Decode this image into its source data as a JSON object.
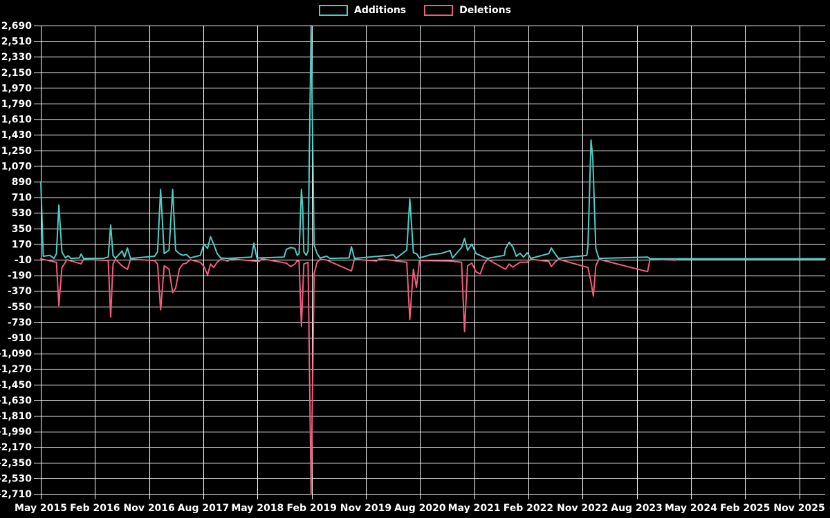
{
  "chart_data": {
    "type": "line",
    "title": "",
    "legend": [
      {
        "name": "Additions",
        "color": "#4ECDC4"
      },
      {
        "name": "Deletions",
        "color": "#F25C7F"
      }
    ],
    "background_color": "#000000",
    "grid_color": "#FFFFFF",
    "text_color": "#FFFFFF",
    "grid": true,
    "legend_position": "top-center",
    "x_ticks": [
      "May 2015",
      "Feb 2016",
      "Nov 2016",
      "Aug 2017",
      "May 2018",
      "Feb 2019",
      "Nov 2019",
      "Aug 2020",
      "May 2021",
      "Feb 2022",
      "Nov 2022",
      "Aug 2023",
      "May 2024",
      "Feb 2025",
      "Nov 2025"
    ],
    "x_tick_interval_months": 9,
    "xlim_months": [
      0,
      130.3
    ],
    "y_ticks": [
      2690,
      2510,
      2330,
      2150,
      1970,
      1790,
      1610,
      1430,
      1250,
      1070,
      890,
      710,
      530,
      350,
      170,
      -10,
      -190,
      -370,
      -550,
      -730,
      -910,
      -1090,
      -1270,
      -1450,
      -1630,
      -1810,
      -1990,
      -2170,
      -2350,
      -2530,
      -2710
    ],
    "ylim": [
      -2710,
      2690
    ],
    "series": [
      {
        "name": "Additions",
        "color": "#4ECDC4",
        "points": [
          [
            0,
            890
          ],
          [
            0.4,
            30
          ],
          [
            1.5,
            40
          ],
          [
            2.2,
            5
          ],
          [
            2.6,
            60
          ],
          [
            3.0,
            620
          ],
          [
            3.5,
            80
          ],
          [
            4.1,
            10
          ],
          [
            4.5,
            35
          ],
          [
            5.0,
            5
          ],
          [
            6.4,
            10
          ],
          [
            6.7,
            55
          ],
          [
            7.1,
            5
          ],
          [
            10.5,
            5
          ],
          [
            10.7,
            12
          ],
          [
            11.2,
            20
          ],
          [
            11.6,
            390
          ],
          [
            12.0,
            40
          ],
          [
            12.4,
            5
          ],
          [
            13.5,
            90
          ],
          [
            13.9,
            20
          ],
          [
            14.4,
            125
          ],
          [
            14.9,
            5
          ],
          [
            18.9,
            30
          ],
          [
            19.4,
            80
          ],
          [
            19.9,
            800
          ],
          [
            20.5,
            60
          ],
          [
            21.3,
            100
          ],
          [
            21.9,
            800
          ],
          [
            22.4,
            100
          ],
          [
            23.0,
            60
          ],
          [
            23.6,
            40
          ],
          [
            24.2,
            50
          ],
          [
            24.8,
            10
          ],
          [
            26.5,
            40
          ],
          [
            27.1,
            170
          ],
          [
            27.7,
            120
          ],
          [
            28.2,
            255
          ],
          [
            28.7,
            170
          ],
          [
            29.3,
            60
          ],
          [
            29.9,
            10
          ],
          [
            31.1,
            5
          ],
          [
            35.0,
            20
          ],
          [
            35.4,
            180
          ],
          [
            35.9,
            10
          ],
          [
            36.3,
            10
          ],
          [
            40.4,
            20
          ],
          [
            40.8,
            110
          ],
          [
            41.5,
            130
          ],
          [
            42.2,
            120
          ],
          [
            42.6,
            40
          ],
          [
            42.9,
            60
          ],
          [
            43.3,
            800
          ],
          [
            43.5,
            600
          ],
          [
            43.7,
            80
          ],
          [
            44.1,
            40
          ],
          [
            44.4,
            90
          ],
          [
            44.9,
            2690
          ],
          [
            45.4,
            160
          ],
          [
            45.9,
            60
          ],
          [
            46.4,
            10
          ],
          [
            47.5,
            30
          ],
          [
            48.0,
            5
          ],
          [
            51.2,
            10
          ],
          [
            51.6,
            140
          ],
          [
            52.1,
            5
          ],
          [
            58.6,
            45
          ],
          [
            59.0,
            5
          ],
          [
            60.8,
            100
          ],
          [
            61.3,
            690
          ],
          [
            61.9,
            70
          ],
          [
            62.4,
            60
          ],
          [
            62.9,
            10
          ],
          [
            64.9,
            50
          ],
          [
            66.4,
            60
          ],
          [
            68.0,
            95
          ],
          [
            68.4,
            10
          ],
          [
            69.9,
            130
          ],
          [
            70.4,
            235
          ],
          [
            70.9,
            100
          ],
          [
            71.6,
            170
          ],
          [
            72.3,
            60
          ],
          [
            73.0,
            40
          ],
          [
            73.6,
            20
          ],
          [
            74.2,
            5
          ],
          [
            77.0,
            40
          ],
          [
            77.2,
            120
          ],
          [
            77.8,
            190
          ],
          [
            78.4,
            140
          ],
          [
            79.0,
            30
          ],
          [
            79.6,
            65
          ],
          [
            80.2,
            20
          ],
          [
            80.8,
            70
          ],
          [
            81.4,
            5
          ],
          [
            84.4,
            60
          ],
          [
            84.8,
            125
          ],
          [
            85.4,
            60
          ],
          [
            86.0,
            5
          ],
          [
            90.7,
            40
          ],
          [
            90.9,
            150
          ],
          [
            91.4,
            1370
          ],
          [
            91.7,
            1150
          ],
          [
            92.2,
            120
          ],
          [
            92.7,
            5
          ],
          [
            100.8,
            20
          ],
          [
            101.2,
            0
          ],
          [
            130.3,
            0
          ]
        ]
      },
      {
        "name": "Deletions",
        "color": "#F25C7F",
        "points": [
          [
            0,
            0
          ],
          [
            2.6,
            -40
          ],
          [
            3.0,
            -540
          ],
          [
            3.5,
            -100
          ],
          [
            3.9,
            -60
          ],
          [
            4.3,
            -10
          ],
          [
            6.7,
            -58
          ],
          [
            7.1,
            -5
          ],
          [
            11.2,
            -20
          ],
          [
            11.6,
            -670
          ],
          [
            12.0,
            -60
          ],
          [
            12.4,
            -5
          ],
          [
            13.5,
            -82
          ],
          [
            14.4,
            -122
          ],
          [
            14.9,
            -5
          ],
          [
            18.9,
            -20
          ],
          [
            19.4,
            -60
          ],
          [
            19.9,
            -590
          ],
          [
            20.5,
            -80
          ],
          [
            21.3,
            -120
          ],
          [
            21.9,
            -390
          ],
          [
            22.4,
            -340
          ],
          [
            23.0,
            -120
          ],
          [
            23.6,
            -60
          ],
          [
            24.2,
            -50
          ],
          [
            24.8,
            -10
          ],
          [
            26.5,
            -40
          ],
          [
            27.1,
            -90
          ],
          [
            27.7,
            -185
          ],
          [
            28.2,
            -60
          ],
          [
            28.7,
            -100
          ],
          [
            29.3,
            -40
          ],
          [
            29.9,
            -5
          ],
          [
            31.1,
            -25
          ],
          [
            31.5,
            0
          ],
          [
            35.4,
            -25
          ],
          [
            36.3,
            -30
          ],
          [
            36.7,
            0
          ],
          [
            40.8,
            -50
          ],
          [
            41.5,
            -90
          ],
          [
            42.2,
            -60
          ],
          [
            42.6,
            -20
          ],
          [
            42.9,
            -30
          ],
          [
            43.3,
            -780
          ],
          [
            43.7,
            -60
          ],
          [
            44.4,
            -40
          ],
          [
            44.9,
            -2710
          ],
          [
            45.4,
            -170
          ],
          [
            45.9,
            -40
          ],
          [
            46.4,
            -5
          ],
          [
            47.5,
            -15
          ],
          [
            51.6,
            -140
          ],
          [
            52.1,
            -5
          ],
          [
            55.8,
            -25
          ],
          [
            56.2,
            0
          ],
          [
            58.6,
            -20
          ],
          [
            60.8,
            -40
          ],
          [
            61.3,
            -700
          ],
          [
            61.9,
            -120
          ],
          [
            62.4,
            -330
          ],
          [
            62.9,
            -20
          ],
          [
            68.0,
            -25
          ],
          [
            69.9,
            -40
          ],
          [
            70.4,
            -840
          ],
          [
            70.9,
            -80
          ],
          [
            71.6,
            -50
          ],
          [
            72.3,
            -150
          ],
          [
            73.0,
            -175
          ],
          [
            73.6,
            -60
          ],
          [
            74.2,
            -5
          ],
          [
            77.2,
            -120
          ],
          [
            77.8,
            -60
          ],
          [
            78.4,
            -95
          ],
          [
            79.6,
            -40
          ],
          [
            80.8,
            -40
          ],
          [
            81.4,
            -5
          ],
          [
            84.4,
            -30
          ],
          [
            84.8,
            -90
          ],
          [
            85.4,
            -40
          ],
          [
            86.0,
            -5
          ],
          [
            90.9,
            -100
          ],
          [
            91.4,
            -270
          ],
          [
            91.8,
            -430
          ],
          [
            92.2,
            -80
          ],
          [
            92.7,
            -5
          ],
          [
            100.8,
            -148
          ],
          [
            101.2,
            -5
          ],
          [
            105.5,
            -15
          ],
          [
            105.9,
            0
          ],
          [
            130.3,
            0
          ]
        ]
      }
    ]
  }
}
